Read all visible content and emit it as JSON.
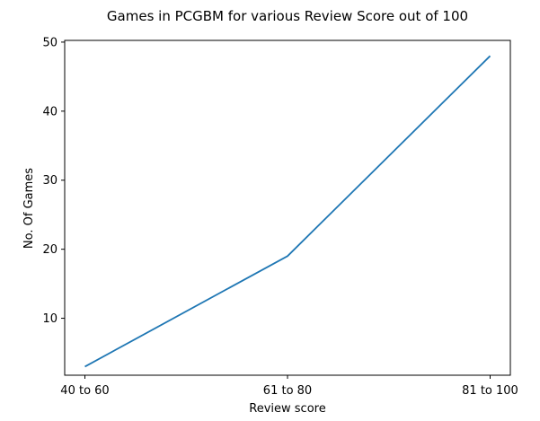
{
  "chart_data": {
    "type": "line",
    "title": "Games in PCGBM for various Review Score out of 100",
    "xlabel": "Review score",
    "ylabel": "No. Of Games",
    "categories": [
      "40 to 60",
      "61 to 80",
      "81 to 100"
    ],
    "series": [
      {
        "values": [
          3,
          19,
          48
        ],
        "color": "#1f77b4"
      }
    ],
    "ylim": [
      1.75,
      50.25
    ],
    "yticks": [
      10,
      20,
      30,
      40,
      50
    ],
    "grid": false,
    "legend": "none"
  }
}
